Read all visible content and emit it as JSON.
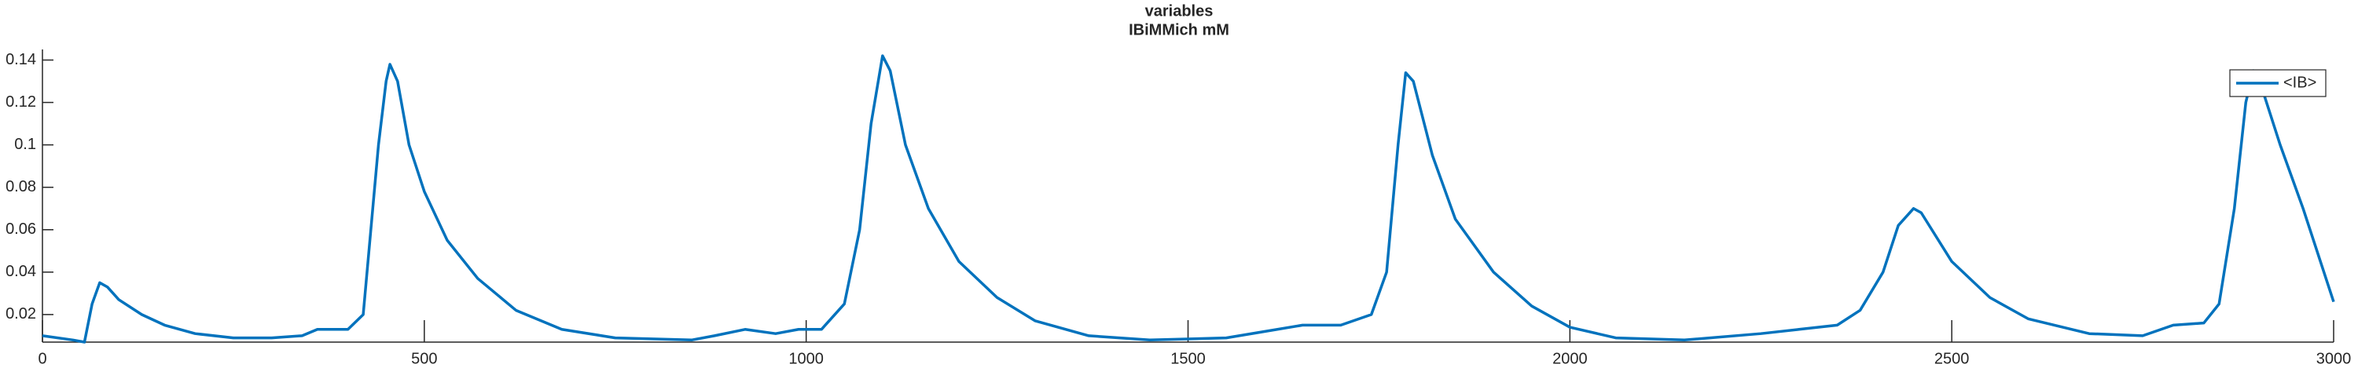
{
  "chart_data": {
    "type": "line",
    "title": "variables",
    "subtitle": "IBiMMich mM",
    "x": [
      0,
      40,
      55,
      65,
      75,
      85,
      100,
      130,
      160,
      200,
      250,
      300,
      340,
      360,
      400,
      420,
      430,
      440,
      450,
      455,
      465,
      480,
      500,
      530,
      570,
      620,
      680,
      750,
      850,
      880,
      920,
      960,
      990,
      1020,
      1050,
      1070,
      1085,
      1100,
      1110,
      1130,
      1160,
      1200,
      1250,
      1300,
      1370,
      1450,
      1550,
      1600,
      1650,
      1700,
      1740,
      1760,
      1775,
      1785,
      1795,
      1820,
      1850,
      1900,
      1950,
      2000,
      2060,
      2150,
      2250,
      2300,
      2350,
      2380,
      2410,
      2430,
      2450,
      2460,
      2500,
      2550,
      2600,
      2680,
      2750,
      2790,
      2830,
      2850,
      2870,
      2885,
      2895,
      2905,
      2930,
      2960,
      3000
    ],
    "series": [
      {
        "name": "<IB>",
        "color": "#0072bd",
        "values": [
          0.01,
          0.008,
          0.007,
          0.025,
          0.035,
          0.033,
          0.027,
          0.02,
          0.015,
          0.011,
          0.009,
          0.009,
          0.01,
          0.013,
          0.013,
          0.02,
          0.06,
          0.1,
          0.13,
          0.138,
          0.13,
          0.1,
          0.078,
          0.055,
          0.037,
          0.022,
          0.013,
          0.009,
          0.008,
          0.01,
          0.013,
          0.011,
          0.013,
          0.013,
          0.025,
          0.06,
          0.11,
          0.142,
          0.135,
          0.1,
          0.07,
          0.045,
          0.028,
          0.017,
          0.01,
          0.008,
          0.009,
          0.012,
          0.015,
          0.015,
          0.02,
          0.04,
          0.1,
          0.134,
          0.13,
          0.095,
          0.065,
          0.04,
          0.024,
          0.014,
          0.009,
          0.008,
          0.011,
          0.013,
          0.015,
          0.022,
          0.04,
          0.062,
          0.07,
          0.068,
          0.045,
          0.028,
          0.018,
          0.011,
          0.01,
          0.015,
          0.016,
          0.025,
          0.07,
          0.12,
          0.135,
          0.128,
          0.1,
          0.07,
          0.026
        ]
      }
    ],
    "xlim": [
      0,
      3000
    ],
    "xticks": [
      0,
      500,
      1000,
      1500,
      2000,
      2500,
      3000
    ],
    "ylim": [
      0.007,
      0.145
    ],
    "yticks": [
      0.02,
      0.04,
      0.06,
      0.08,
      0.1,
      0.12,
      0.14
    ],
    "grid": false,
    "legend": "northeast"
  }
}
